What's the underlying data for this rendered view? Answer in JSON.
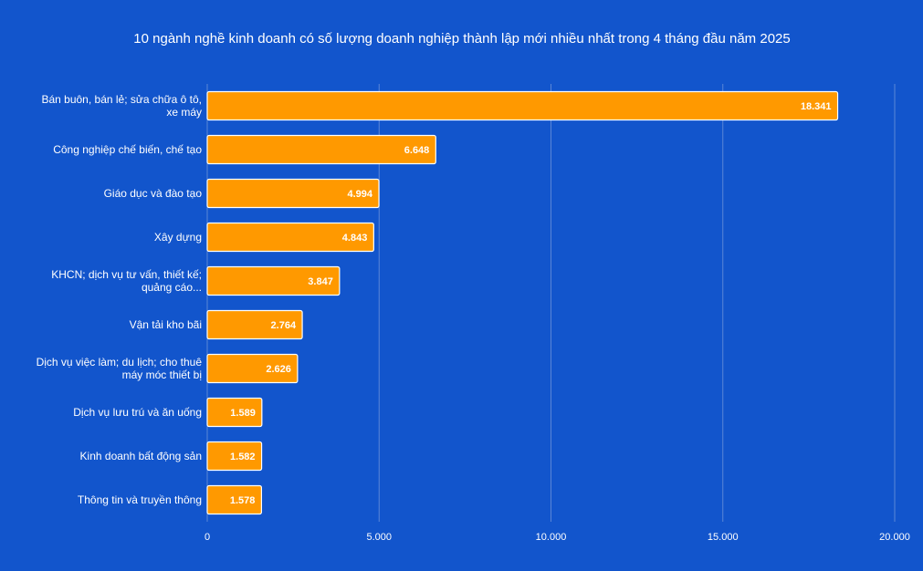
{
  "chart_data": {
    "type": "bar",
    "orientation": "horizontal",
    "title": "10 ngành nghề kinh doanh có số lượng doanh nghiệp thành lập mới nhiều nhất trong 4 tháng đầu năm 2025",
    "categories": [
      "Bán buôn, bán lẻ; sửa chữa ô tô, xe máy",
      "Công nghiệp chế biến, chế tạo",
      "Giáo dục và đào tạo",
      "Xây dựng",
      "KHCN; dịch vụ tư vấn, thiết kế; quảng cáo...",
      "Vận tải kho bãi",
      "Dịch vụ việc làm; du lịch; cho thuê máy móc thiết bị",
      "Dịch vụ lưu trú và ăn uống",
      "Kinh doanh bất động sản",
      "Thông tin và truyền thông"
    ],
    "category_lines": [
      [
        "Bán buôn, bán lẻ; sửa chữa ô tô,",
        "xe máy"
      ],
      [
        "Công nghiệp chế biến, chế tạo"
      ],
      [
        "Giáo dục và đào tạo"
      ],
      [
        "Xây dựng"
      ],
      [
        "KHCN; dịch vụ tư vấn, thiết kế;",
        "quảng cáo..."
      ],
      [
        "Vận tải kho bãi"
      ],
      [
        "Dịch vụ việc làm; du lịch; cho thuê",
        "máy móc thiết bị"
      ],
      [
        "Dịch vụ lưu trú và ăn uống"
      ],
      [
        "Kinh doanh bất động sản"
      ],
      [
        "Thông tin và truyền thông"
      ]
    ],
    "values": [
      18341,
      6648,
      4994,
      4843,
      3847,
      2764,
      2626,
      1589,
      1582,
      1578
    ],
    "value_labels": [
      "18.341",
      "6.648",
      "4.994",
      "4.843",
      "3.847",
      "2.764",
      "2.626",
      "1.589",
      "1.582",
      "1.578"
    ],
    "xlim": [
      0,
      20000
    ],
    "xticks": [
      0,
      5000,
      10000,
      15000,
      20000
    ],
    "xtick_labels": [
      "0",
      "5.000",
      "10.000",
      "15.000",
      "20.000"
    ],
    "xlabel": "",
    "ylabel": "",
    "grid": true,
    "legend": "none",
    "colors": {
      "background": "#1255cc",
      "bar": "#ff9900",
      "bar_border": "#ffffff",
      "grid": "#5a86d6",
      "text": "#ffffff"
    }
  }
}
